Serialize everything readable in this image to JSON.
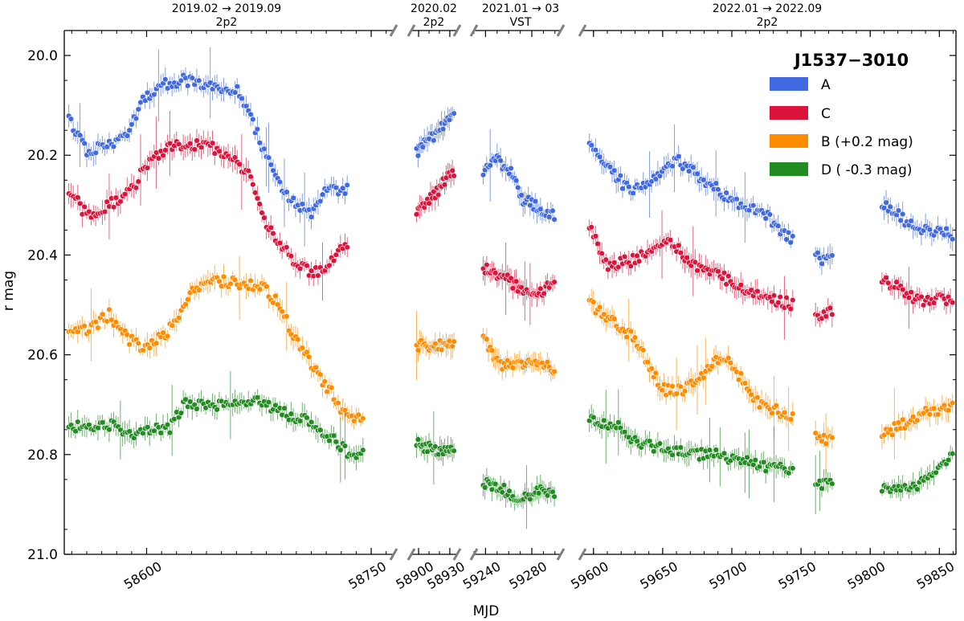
{
  "chart_data": {
    "type": "scatter",
    "title": "J1537−3010",
    "xlabel": "MJD",
    "ylabel": "r mag",
    "ylim": [
      21.0,
      19.95
    ],
    "yticks": [
      "20.0",
      "20.2",
      "20.4",
      "20.6",
      "20.8",
      "21.0"
    ],
    "yticks_values": [
      20.0,
      20.2,
      20.4,
      20.6,
      20.8,
      21.0
    ],
    "grid": false,
    "legend_position": "top-right",
    "segments": [
      {
        "label_top": "2019.02 → 2019.09",
        "label_bottom": "2p2",
        "xlim": [
          58545,
          58765
        ],
        "ticks": [
          {
            "value": 58600,
            "label": "58600"
          },
          {
            "value": 58750,
            "label": "58750"
          }
        ]
      },
      {
        "label_top": "2020.02",
        "label_bottom": "2p2",
        "xlim": [
          58893,
          58937
        ],
        "ticks": [
          {
            "value": 58900,
            "label": "58900"
          },
          {
            "value": 58930,
            "label": "58930"
          }
        ]
      },
      {
        "label_top": "2021.01 → 03",
        "label_bottom": "VST",
        "xlim": [
          59230,
          59305
        ],
        "ticks": [
          {
            "value": 59240,
            "label": "59240"
          },
          {
            "value": 59280,
            "label": "59280"
          }
        ]
      },
      {
        "label_top": "2022.01 → 2022.09",
        "label_bottom": "2p2",
        "xlim": [
          59592,
          59862
        ],
        "ticks": [
          {
            "value": 59600,
            "label": "59600"
          },
          {
            "value": 59650,
            "label": "59650"
          },
          {
            "value": 59700,
            "label": "59700"
          },
          {
            "value": 59750,
            "label": "59750"
          },
          {
            "value": 59800,
            "label": "59800"
          },
          {
            "value": 59850,
            "label": "59850"
          }
        ]
      }
    ],
    "series": [
      {
        "name": "A",
        "legend": "A",
        "color": "#4169e1",
        "knots": [
          [
            58548,
            20.13
          ],
          [
            58560,
            20.19
          ],
          [
            58575,
            20.18
          ],
          [
            58588,
            20.15
          ],
          [
            58598,
            20.09
          ],
          [
            58610,
            20.06
          ],
          [
            58625,
            20.05
          ],
          [
            58645,
            20.06
          ],
          [
            58660,
            20.07
          ],
          [
            58670,
            20.13
          ],
          [
            58680,
            20.2
          ],
          [
            58690,
            20.27
          ],
          [
            58700,
            20.3
          ],
          [
            58710,
            20.32
          ],
          [
            58720,
            20.26
          ],
          [
            58730,
            20.27
          ],
          [
            58900,
            20.19
          ],
          [
            58915,
            20.16
          ],
          [
            58930,
            20.12
          ],
          [
            59240,
            20.23
          ],
          [
            59250,
            20.21
          ],
          [
            59262,
            20.23
          ],
          [
            59272,
            20.29
          ],
          [
            59282,
            20.3
          ],
          [
            59298,
            20.32
          ],
          [
            59598,
            20.17
          ],
          [
            59610,
            20.22
          ],
          [
            59625,
            20.27
          ],
          [
            59640,
            20.26
          ],
          [
            59660,
            20.21
          ],
          [
            59680,
            20.25
          ],
          [
            59700,
            20.29
          ],
          [
            59720,
            20.31
          ],
          [
            59740,
            20.36
          ],
          [
            59765,
            20.41
          ],
          [
            59785,
            20.41
          ],
          [
            59810,
            20.3
          ],
          [
            59835,
            20.35
          ],
          [
            59860,
            20.36
          ]
        ],
        "gaps": [
          [
            58734,
            58895
          ],
          [
            58934,
            59235
          ],
          [
            59300,
            59595
          ],
          [
            59745,
            59760
          ],
          [
            59773,
            59808
          ]
        ]
      },
      {
        "name": "C",
        "legend": "C",
        "color": "#dc143c",
        "knots": [
          [
            58548,
            20.27
          ],
          [
            58560,
            20.32
          ],
          [
            58575,
            20.3
          ],
          [
            58590,
            20.27
          ],
          [
            58600,
            20.22
          ],
          [
            58615,
            20.18
          ],
          [
            58640,
            20.18
          ],
          [
            58655,
            20.2
          ],
          [
            58668,
            20.24
          ],
          [
            58680,
            20.34
          ],
          [
            58695,
            20.4
          ],
          [
            58710,
            20.44
          ],
          [
            58720,
            20.42
          ],
          [
            58732,
            20.38
          ],
          [
            58900,
            20.31
          ],
          [
            58915,
            20.28
          ],
          [
            58930,
            20.24
          ],
          [
            59240,
            20.43
          ],
          [
            59255,
            20.44
          ],
          [
            59270,
            20.47
          ],
          [
            59285,
            20.48
          ],
          [
            59298,
            20.45
          ],
          [
            59598,
            20.35
          ],
          [
            59610,
            20.42
          ],
          [
            59630,
            20.41
          ],
          [
            59655,
            20.37
          ],
          [
            59670,
            20.42
          ],
          [
            59690,
            20.44
          ],
          [
            59710,
            20.47
          ],
          [
            59730,
            20.49
          ],
          [
            59745,
            20.5
          ],
          [
            59765,
            20.52
          ],
          [
            59785,
            20.49
          ],
          [
            59810,
            20.45
          ],
          [
            59835,
            20.49
          ],
          [
            59860,
            20.49
          ]
        ],
        "gaps": [
          [
            58734,
            58895
          ],
          [
            58934,
            59235
          ],
          [
            59300,
            59595
          ],
          [
            59745,
            59760
          ],
          [
            59773,
            59808
          ]
        ]
      },
      {
        "name": "B",
        "legend": "B (+0.2 mag)",
        "color": "#ff8c00",
        "knots": [
          [
            58548,
            20.55
          ],
          [
            58560,
            20.55
          ],
          [
            58575,
            20.52
          ],
          [
            58588,
            20.57
          ],
          [
            58600,
            20.59
          ],
          [
            58615,
            20.55
          ],
          [
            58630,
            20.47
          ],
          [
            58645,
            20.45
          ],
          [
            58665,
            20.46
          ],
          [
            58678,
            20.46
          ],
          [
            58688,
            20.5
          ],
          [
            58700,
            20.57
          ],
          [
            58712,
            20.63
          ],
          [
            58722,
            20.67
          ],
          [
            58735,
            20.73
          ],
          [
            58900,
            20.58
          ],
          [
            58915,
            20.58
          ],
          [
            58930,
            20.58
          ],
          [
            59240,
            20.57
          ],
          [
            59252,
            20.62
          ],
          [
            59268,
            20.62
          ],
          [
            59285,
            20.61
          ],
          [
            59298,
            20.63
          ],
          [
            59598,
            20.5
          ],
          [
            59612,
            20.53
          ],
          [
            59630,
            20.57
          ],
          [
            59650,
            20.67
          ],
          [
            59665,
            20.67
          ],
          [
            59680,
            20.64
          ],
          [
            59692,
            20.6
          ],
          [
            59705,
            20.64
          ],
          [
            59720,
            20.7
          ],
          [
            59740,
            20.72
          ],
          [
            59765,
            20.77
          ],
          [
            59785,
            20.77
          ],
          [
            59810,
            20.76
          ],
          [
            59835,
            20.72
          ],
          [
            59860,
            20.7
          ]
        ],
        "gaps": [
          [
            58745,
            58895
          ],
          [
            58934,
            59235
          ],
          [
            59300,
            59595
          ],
          [
            59745,
            59760
          ],
          [
            59773,
            59808
          ]
        ]
      },
      {
        "name": "D",
        "legend": "D ( -0.3 mag)",
        "color": "#228b22",
        "knots": [
          [
            58548,
            20.75
          ],
          [
            58560,
            20.74
          ],
          [
            58575,
            20.74
          ],
          [
            58590,
            20.76
          ],
          [
            58600,
            20.75
          ],
          [
            58615,
            20.75
          ],
          [
            58625,
            20.7
          ],
          [
            58645,
            20.7
          ],
          [
            58665,
            20.69
          ],
          [
            58680,
            20.7
          ],
          [
            58695,
            20.72
          ],
          [
            58712,
            20.74
          ],
          [
            58725,
            20.77
          ],
          [
            58735,
            20.8
          ],
          [
            58900,
            20.78
          ],
          [
            58915,
            20.79
          ],
          [
            58930,
            20.79
          ],
          [
            59240,
            20.86
          ],
          [
            59255,
            20.87
          ],
          [
            59270,
            20.89
          ],
          [
            59285,
            20.87
          ],
          [
            59298,
            20.88
          ],
          [
            59598,
            20.73
          ],
          [
            59615,
            20.74
          ],
          [
            59635,
            20.78
          ],
          [
            59655,
            20.79
          ],
          [
            59670,
            20.8
          ],
          [
            59690,
            20.8
          ],
          [
            59705,
            20.81
          ],
          [
            59720,
            20.82
          ],
          [
            59740,
            20.83
          ],
          [
            59765,
            20.86
          ],
          [
            59785,
            20.86
          ],
          [
            59810,
            20.87
          ],
          [
            59835,
            20.86
          ],
          [
            59860,
            20.8
          ]
        ],
        "gaps": [
          [
            58745,
            58895
          ],
          [
            58934,
            59235
          ],
          [
            59300,
            59595
          ],
          [
            59745,
            59760
          ],
          [
            59773,
            59808
          ]
        ]
      }
    ]
  }
}
